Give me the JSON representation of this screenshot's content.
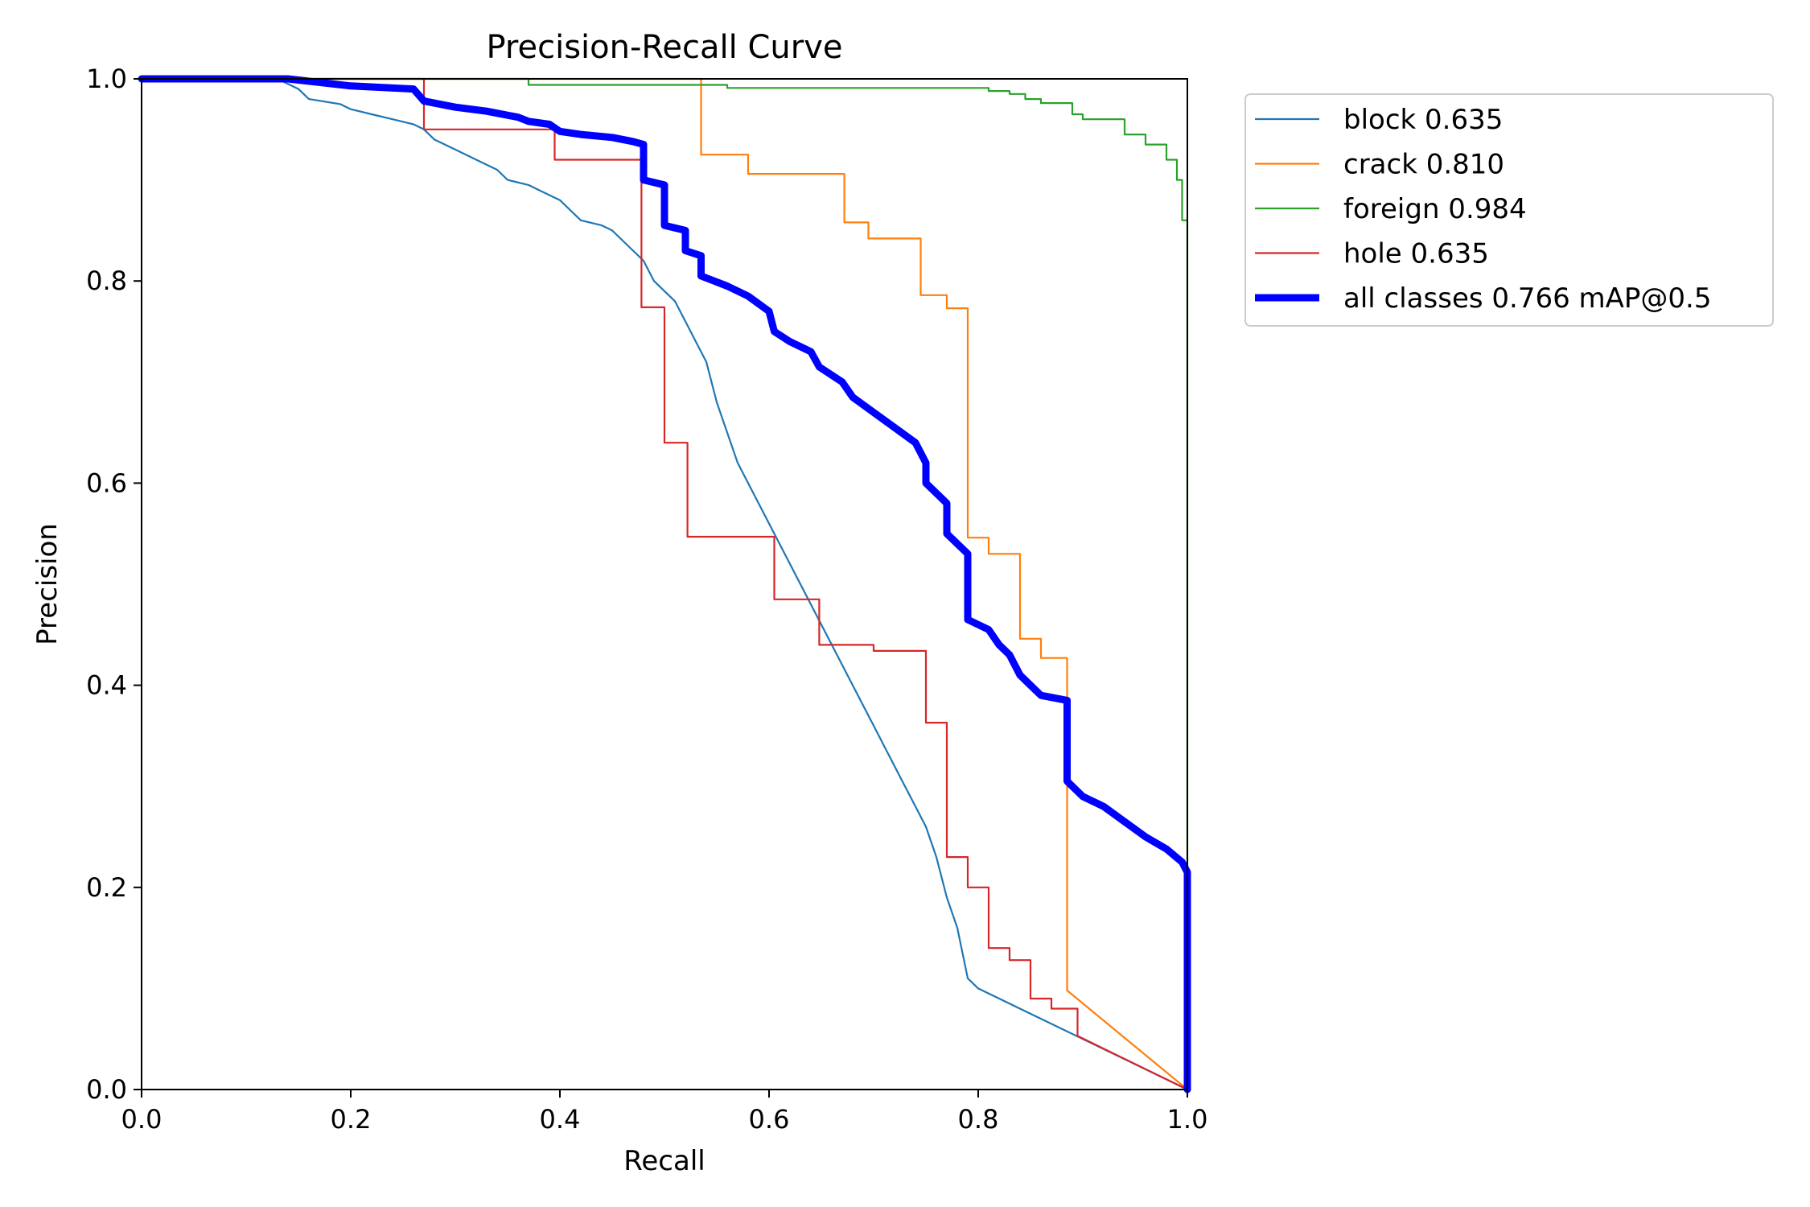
{
  "chart_data": {
    "type": "line",
    "title": "Precision-Recall Curve",
    "xlabel": "Recall",
    "ylabel": "Precision",
    "xlim": [
      0,
      1
    ],
    "ylim": [
      0,
      1
    ],
    "x_ticks": [
      "0.0",
      "0.2",
      "0.4",
      "0.6",
      "0.8",
      "1.0"
    ],
    "y_ticks": [
      "0.0",
      "0.2",
      "0.4",
      "0.6",
      "0.8",
      "1.0"
    ],
    "grid": false,
    "legend_position": "outside-right-top",
    "series": [
      {
        "name": "block 0.635",
        "color": "#1f77b4",
        "x": [
          0,
          0.13,
          0.15,
          0.16,
          0.19,
          0.2,
          0.22,
          0.24,
          0.26,
          0.27,
          0.28,
          0.3,
          0.32,
          0.34,
          0.35,
          0.37,
          0.38,
          0.4,
          0.41,
          0.42,
          0.44,
          0.45,
          0.46,
          0.47,
          0.48,
          0.49,
          0.5,
          0.51,
          0.52,
          0.53,
          0.54,
          0.55,
          0.56,
          0.57,
          0.58,
          0.59,
          0.6,
          0.61,
          0.62,
          0.63,
          0.64,
          0.65,
          0.66,
          0.67,
          0.68,
          0.69,
          0.7,
          0.71,
          0.72,
          0.73,
          0.74,
          0.75,
          0.76,
          0.77,
          0.78,
          0.79,
          0.8,
          1.0
        ],
        "y": [
          1.0,
          1.0,
          0.99,
          0.98,
          0.975,
          0.97,
          0.965,
          0.96,
          0.955,
          0.95,
          0.94,
          0.93,
          0.92,
          0.91,
          0.9,
          0.895,
          0.89,
          0.88,
          0.87,
          0.86,
          0.855,
          0.85,
          0.84,
          0.83,
          0.82,
          0.8,
          0.79,
          0.78,
          0.76,
          0.74,
          0.72,
          0.68,
          0.65,
          0.62,
          0.6,
          0.58,
          0.56,
          0.54,
          0.52,
          0.5,
          0.48,
          0.46,
          0.44,
          0.42,
          0.4,
          0.38,
          0.36,
          0.34,
          0.32,
          0.3,
          0.28,
          0.26,
          0.23,
          0.19,
          0.16,
          0.11,
          0.1,
          0.0
        ]
      },
      {
        "name": "crack 0.810",
        "color": "#ff7f0e",
        "x": [
          0,
          0.535,
          0.535,
          0.58,
          0.58,
          0.672,
          0.672,
          0.695,
          0.695,
          0.745,
          0.745,
          0.77,
          0.77,
          0.79,
          0.79,
          0.81,
          0.81,
          0.84,
          0.84,
          0.86,
          0.86,
          0.885,
          0.885,
          1.0
        ],
        "y": [
          1.0,
          1.0,
          0.925,
          0.925,
          0.906,
          0.906,
          0.858,
          0.858,
          0.842,
          0.842,
          0.786,
          0.786,
          0.773,
          0.773,
          0.546,
          0.546,
          0.53,
          0.53,
          0.446,
          0.446,
          0.427,
          0.427,
          0.098,
          0.0
        ]
      },
      {
        "name": "foreign 0.984",
        "color": "#2ca02c",
        "x": [
          0,
          0.37,
          0.37,
          0.56,
          0.56,
          0.81,
          0.81,
          0.83,
          0.83,
          0.845,
          0.845,
          0.86,
          0.86,
          0.89,
          0.89,
          0.9,
          0.9,
          0.94,
          0.94,
          0.96,
          0.96,
          0.98,
          0.98,
          0.99,
          0.99,
          0.995,
          0.995,
          1.0,
          1.0
        ],
        "y": [
          1.0,
          1.0,
          0.994,
          0.994,
          0.991,
          0.991,
          0.988,
          0.988,
          0.985,
          0.985,
          0.98,
          0.98,
          0.976,
          0.976,
          0.965,
          0.965,
          0.96,
          0.96,
          0.945,
          0.945,
          0.935,
          0.935,
          0.92,
          0.92,
          0.9,
          0.9,
          0.86,
          0.86,
          0.0
        ]
      },
      {
        "name": "hole 0.635",
        "color": "#d62728",
        "x": [
          0,
          0.27,
          0.27,
          0.395,
          0.395,
          0.478,
          0.478,
          0.5,
          0.5,
          0.522,
          0.522,
          0.605,
          0.605,
          0.648,
          0.648,
          0.7,
          0.7,
          0.75,
          0.75,
          0.77,
          0.77,
          0.79,
          0.79,
          0.81,
          0.81,
          0.83,
          0.83,
          0.85,
          0.85,
          0.87,
          0.87,
          0.895,
          0.895,
          1.0
        ],
        "y": [
          1.0,
          1.0,
          0.95,
          0.95,
          0.92,
          0.92,
          0.774,
          0.774,
          0.64,
          0.64,
          0.547,
          0.547,
          0.485,
          0.485,
          0.44,
          0.44,
          0.434,
          0.434,
          0.363,
          0.363,
          0.23,
          0.23,
          0.2,
          0.2,
          0.14,
          0.14,
          0.128,
          0.128,
          0.09,
          0.09,
          0.08,
          0.08,
          0.053,
          0.0
        ]
      },
      {
        "name": "all classes 0.766 mAP@0.5",
        "color": "#0000ff",
        "bold": true,
        "x": [
          0,
          0.14,
          0.2,
          0.26,
          0.27,
          0.3,
          0.33,
          0.36,
          0.37,
          0.39,
          0.4,
          0.42,
          0.45,
          0.47,
          0.48,
          0.48,
          0.5,
          0.5,
          0.52,
          0.52,
          0.535,
          0.535,
          0.56,
          0.58,
          0.6,
          0.605,
          0.62,
          0.64,
          0.648,
          0.67,
          0.68,
          0.7,
          0.72,
          0.74,
          0.75,
          0.75,
          0.77,
          0.77,
          0.79,
          0.79,
          0.81,
          0.82,
          0.83,
          0.84,
          0.85,
          0.86,
          0.87,
          0.88,
          0.885,
          0.885,
          0.9,
          0.92,
          0.94,
          0.96,
          0.98,
          0.995,
          1.0,
          1.0
        ],
        "y": [
          1.0,
          1.0,
          0.993,
          0.99,
          0.978,
          0.972,
          0.968,
          0.962,
          0.958,
          0.955,
          0.948,
          0.945,
          0.942,
          0.938,
          0.935,
          0.9,
          0.895,
          0.855,
          0.85,
          0.83,
          0.825,
          0.805,
          0.795,
          0.785,
          0.77,
          0.75,
          0.74,
          0.73,
          0.715,
          0.7,
          0.685,
          0.67,
          0.655,
          0.64,
          0.62,
          0.6,
          0.58,
          0.55,
          0.53,
          0.465,
          0.455,
          0.44,
          0.43,
          0.41,
          0.4,
          0.39,
          0.388,
          0.386,
          0.385,
          0.305,
          0.29,
          0.28,
          0.265,
          0.25,
          0.238,
          0.225,
          0.215,
          0.0
        ]
      }
    ]
  }
}
